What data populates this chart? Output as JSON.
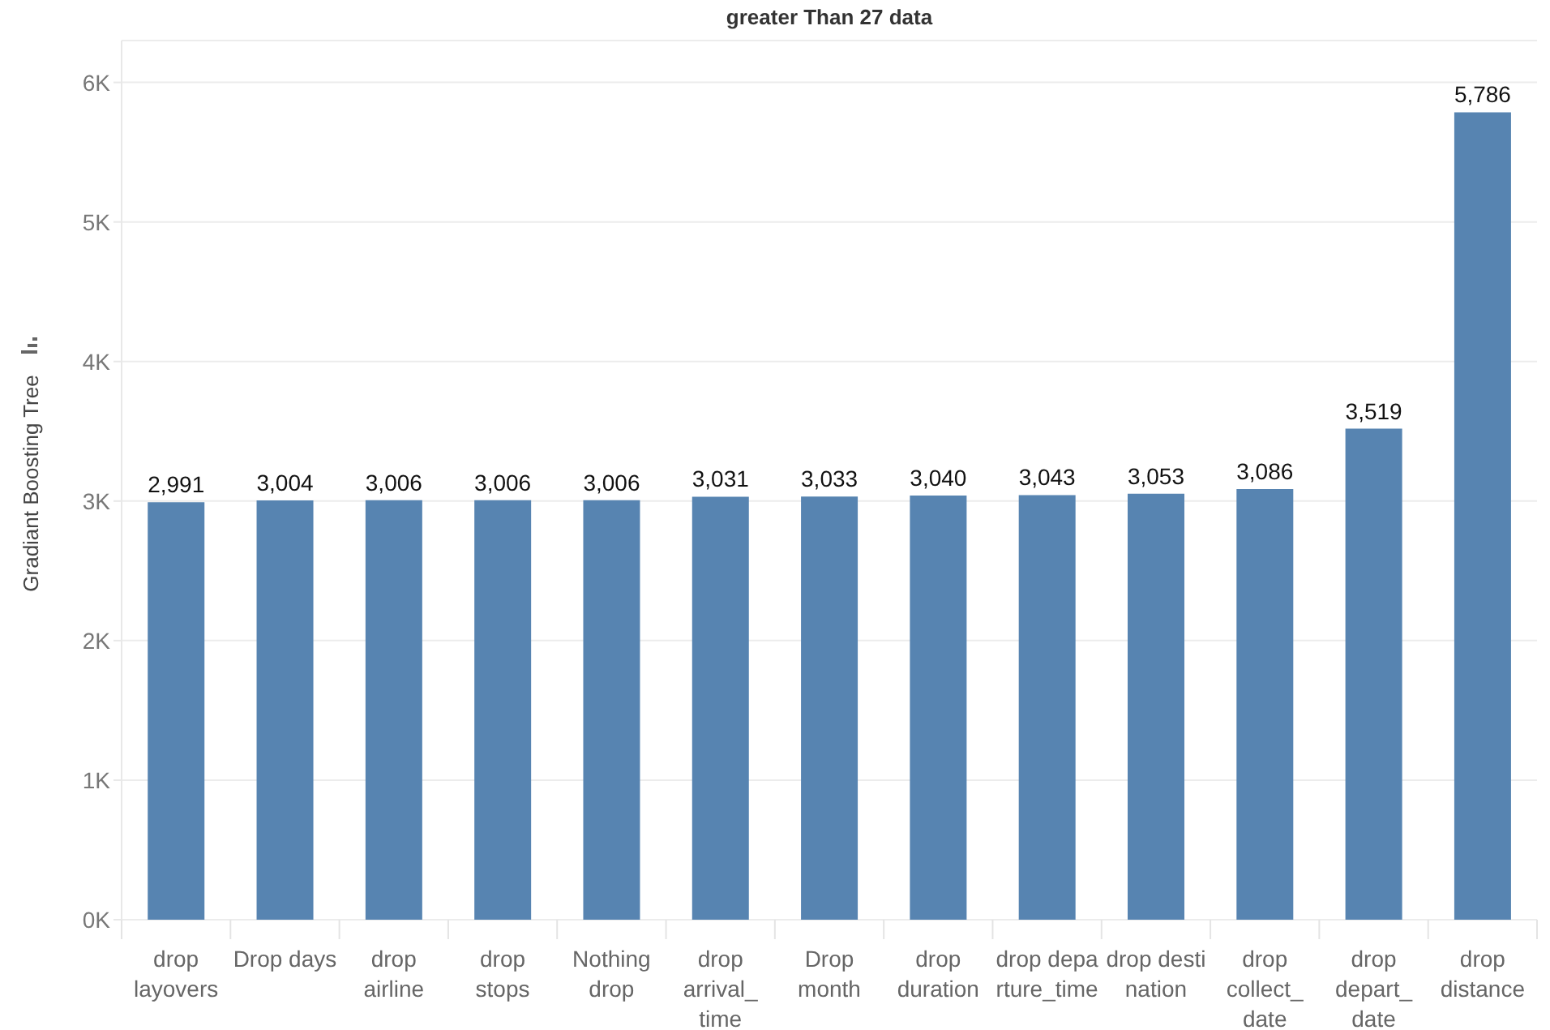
{
  "chart_data": {
    "type": "bar",
    "title": "greater Than 27 data",
    "ylabel": "Gradiant Boosting Tree",
    "categories": [
      "drop layovers",
      "Drop days",
      "drop airline",
      "drop stops",
      "Nothing drop",
      "drop arrival_time",
      "Drop month",
      "drop duration",
      "drop departure_time",
      "drop destination",
      "drop collect_date",
      "drop depart_date",
      "drop distance"
    ],
    "values": [
      2991,
      3004,
      3006,
      3006,
      3006,
      3031,
      3033,
      3040,
      3043,
      3053,
      3086,
      3519,
      5786
    ],
    "value_labels": [
      "2,991",
      "3,004",
      "3,006",
      "3,006",
      "3,006",
      "3,031",
      "3,033",
      "3,040",
      "3,043",
      "3,053",
      "3,086",
      "3,519",
      "5,786"
    ],
    "color": "#5784b1",
    "ylim": [
      0,
      6300
    ],
    "yticks": [
      {
        "value": 0,
        "label": "0K"
      },
      {
        "value": 1000,
        "label": "1K"
      },
      {
        "value": 2000,
        "label": "2K"
      },
      {
        "value": 3000,
        "label": "3K"
      },
      {
        "value": 4000,
        "label": "4K"
      },
      {
        "value": 5000,
        "label": "5K"
      },
      {
        "value": 6000,
        "label": "6K"
      }
    ],
    "grid": "y"
  }
}
